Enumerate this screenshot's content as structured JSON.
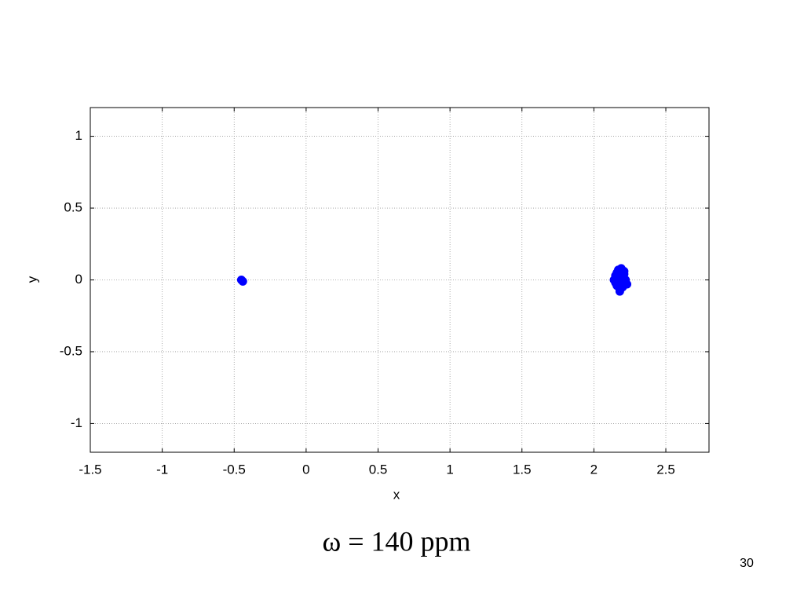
{
  "chart_data": {
    "type": "scatter",
    "x_label": "x",
    "y_label": "y",
    "x": [
      -0.45,
      -0.44,
      2.15,
      2.16,
      2.17,
      2.18,
      2.19,
      2.2,
      2.21,
      2.22,
      2.15,
      2.17,
      2.19,
      2.21,
      2.16,
      2.18,
      2.2,
      2.18,
      2.14,
      2.23
    ],
    "y": [
      0,
      -0.01,
      0.03,
      -0.04,
      0.07,
      -0.07,
      0.08,
      -0.05,
      0.04,
      0,
      -0.02,
      0.01,
      -0.01,
      0.06,
      0.05,
      -0.08,
      0.02,
      0.04,
      0,
      -0.03
    ],
    "color": "#0000ff",
    "xlim": [
      -1.5,
      2.8
    ],
    "ylim": [
      -1.2,
      1.2
    ],
    "xticks": [
      -1.5,
      -1,
      -0.5,
      0,
      0.5,
      1,
      1.5,
      2,
      2.5
    ],
    "yticks": [
      -1,
      -0.5,
      0,
      0.5,
      1
    ],
    "grid": true
  },
  "caption": "ω = 140 ppm",
  "page_number": "30"
}
